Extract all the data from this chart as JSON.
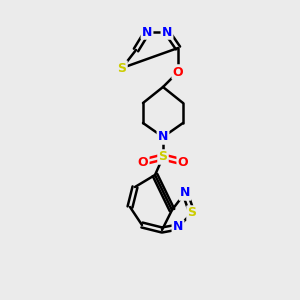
{
  "bg_color": "#ebebeb",
  "bond_color": "#000000",
  "bond_width": 1.8,
  "atom_colors": {
    "N": "#0000ff",
    "S": "#cccc00",
    "O": "#ff0000",
    "C": "#000000"
  },
  "font_size": 9
}
